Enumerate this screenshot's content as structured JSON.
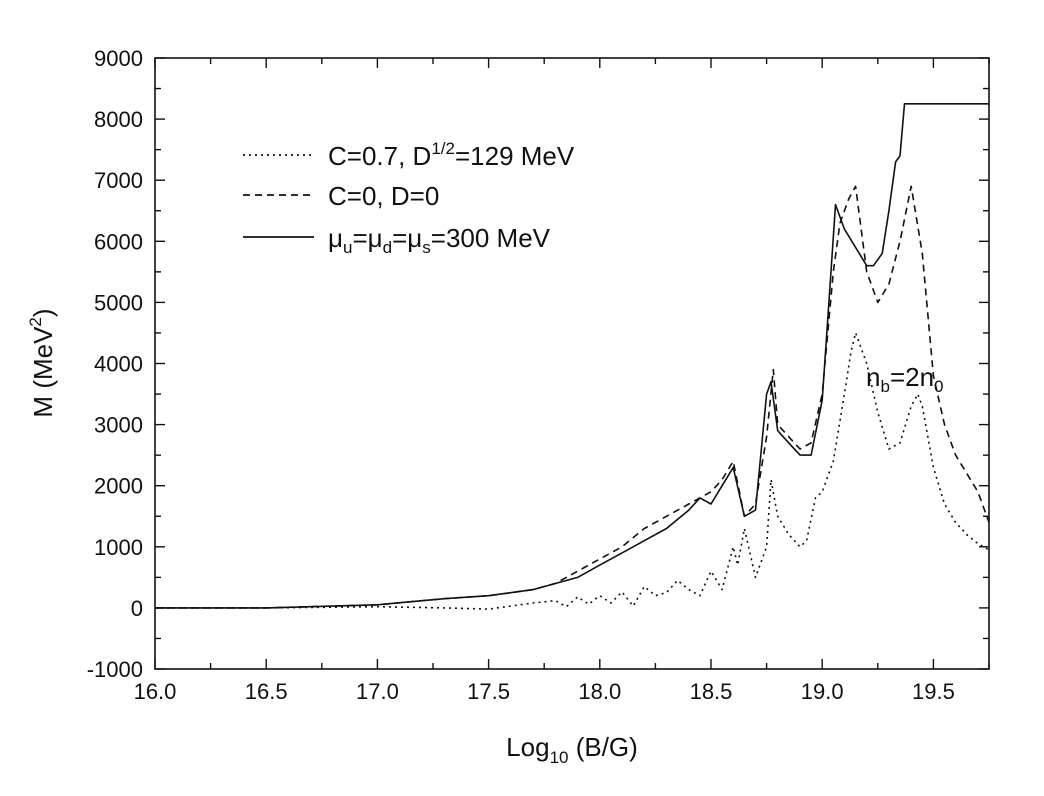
{
  "chart_data": {
    "type": "line",
    "xlabel": {
      "main": "Log",
      "sub": "10",
      "rest": " (B/G)"
    },
    "ylabel": {
      "main": "M (MeV",
      "sup": "2",
      "rest": ")"
    },
    "xlim": [
      16.0,
      19.75
    ],
    "ylim": [
      -1000,
      9000
    ],
    "x_ticks": [
      "16.0",
      "16.5",
      "17.0",
      "17.5",
      "18.0",
      "18.5",
      "19.0",
      "19.5"
    ],
    "y_ticks": [
      "-1000",
      "0",
      "1000",
      "2000",
      "3000",
      "4000",
      "5000",
      "6000",
      "7000",
      "8000",
      "9000"
    ],
    "annotation": {
      "main": "n",
      "sub1": "b",
      "mid": "=2n",
      "sub2": "0"
    },
    "legend_position": "upper-left",
    "series": [
      {
        "name": "C=0.7, D^1/2=129 MeV",
        "legend": {
          "part1": "C=0.7, D",
          "sup": "1/2",
          "part2": "=129 MeV"
        },
        "style": "dotted",
        "x": [
          16.0,
          16.5,
          17.0,
          17.3,
          17.5,
          17.7,
          17.75,
          17.8,
          17.85,
          17.9,
          17.95,
          18.0,
          18.05,
          18.1,
          18.15,
          18.2,
          18.25,
          18.3,
          18.35,
          18.4,
          18.45,
          18.5,
          18.55,
          18.6,
          18.62,
          18.65,
          18.7,
          18.75,
          18.77,
          18.8,
          18.85,
          18.9,
          18.93,
          18.97,
          19.0,
          19.05,
          19.1,
          19.13,
          19.15,
          19.2,
          19.25,
          19.3,
          19.35,
          19.4,
          19.43,
          19.45,
          19.5,
          19.55,
          19.6,
          19.65,
          19.7,
          19.75
        ],
        "y": [
          0,
          0,
          20,
          0,
          -20,
          80,
          100,
          120,
          20,
          180,
          60,
          200,
          80,
          260,
          30,
          350,
          200,
          250,
          450,
          300,
          200,
          600,
          300,
          1000,
          700,
          1300,
          500,
          1000,
          2100,
          1500,
          1200,
          1000,
          1100,
          1800,
          1900,
          2400,
          3500,
          4200,
          4500,
          4000,
          3200,
          2600,
          2700,
          3300,
          3500,
          3300,
          2300,
          1700,
          1400,
          1200,
          1050,
          950
        ]
      },
      {
        "name": "C=0, D=0",
        "legend": {
          "part1": "C=0, D=0"
        },
        "style": "dashed",
        "x": [
          16.0,
          16.5,
          17.0,
          17.3,
          17.5,
          17.7,
          17.8,
          17.9,
          18.0,
          18.1,
          18.2,
          18.3,
          18.4,
          18.45,
          18.5,
          18.55,
          18.6,
          18.65,
          18.7,
          18.75,
          18.78,
          18.8,
          18.85,
          18.9,
          18.95,
          19.0,
          19.05,
          19.08,
          19.12,
          19.15,
          19.2,
          19.25,
          19.3,
          19.35,
          19.4,
          19.45,
          19.5,
          19.55,
          19.6,
          19.65,
          19.7,
          19.75
        ],
        "y": [
          0,
          0,
          50,
          150,
          200,
          300,
          400,
          600,
          800,
          1000,
          1300,
          1500,
          1700,
          1800,
          1900,
          2100,
          2400,
          1500,
          1700,
          2800,
          3900,
          3000,
          2800,
          2600,
          2700,
          3500,
          5500,
          6300,
          6700,
          6900,
          5500,
          5000,
          5300,
          6000,
          6900,
          5800,
          3800,
          3000,
          2500,
          2200,
          1900,
          1400
        ]
      },
      {
        "name": "μu=μd=μs=300 MeV",
        "legend": {
          "m": "μ",
          "s1": "u",
          "eq1": "=",
          "s2": "d",
          "eq2": "=",
          "s3": "s",
          "tail": "=300 MeV"
        },
        "style": "solid",
        "x": [
          16.0,
          16.5,
          17.0,
          17.3,
          17.5,
          17.7,
          17.8,
          17.9,
          18.0,
          18.1,
          18.2,
          18.3,
          18.4,
          18.45,
          18.5,
          18.55,
          18.6,
          18.65,
          18.7,
          18.75,
          18.77,
          18.8,
          18.85,
          18.9,
          18.95,
          19.0,
          19.03,
          19.06,
          19.1,
          19.15,
          19.2,
          19.23,
          19.27,
          19.3,
          19.33,
          19.35,
          19.37,
          19.4,
          19.5,
          19.6,
          19.75
        ],
        "y": [
          0,
          0,
          50,
          150,
          200,
          300,
          400,
          500,
          700,
          900,
          1100,
          1300,
          1600,
          1800,
          1700,
          2000,
          2300,
          1500,
          1600,
          3500,
          3700,
          2900,
          2700,
          2500,
          2500,
          3400,
          5000,
          6600,
          6200,
          5900,
          5600,
          5600,
          5800,
          6500,
          7300,
          7400,
          8250,
          8250,
          8250,
          8250,
          8250
        ]
      }
    ]
  }
}
